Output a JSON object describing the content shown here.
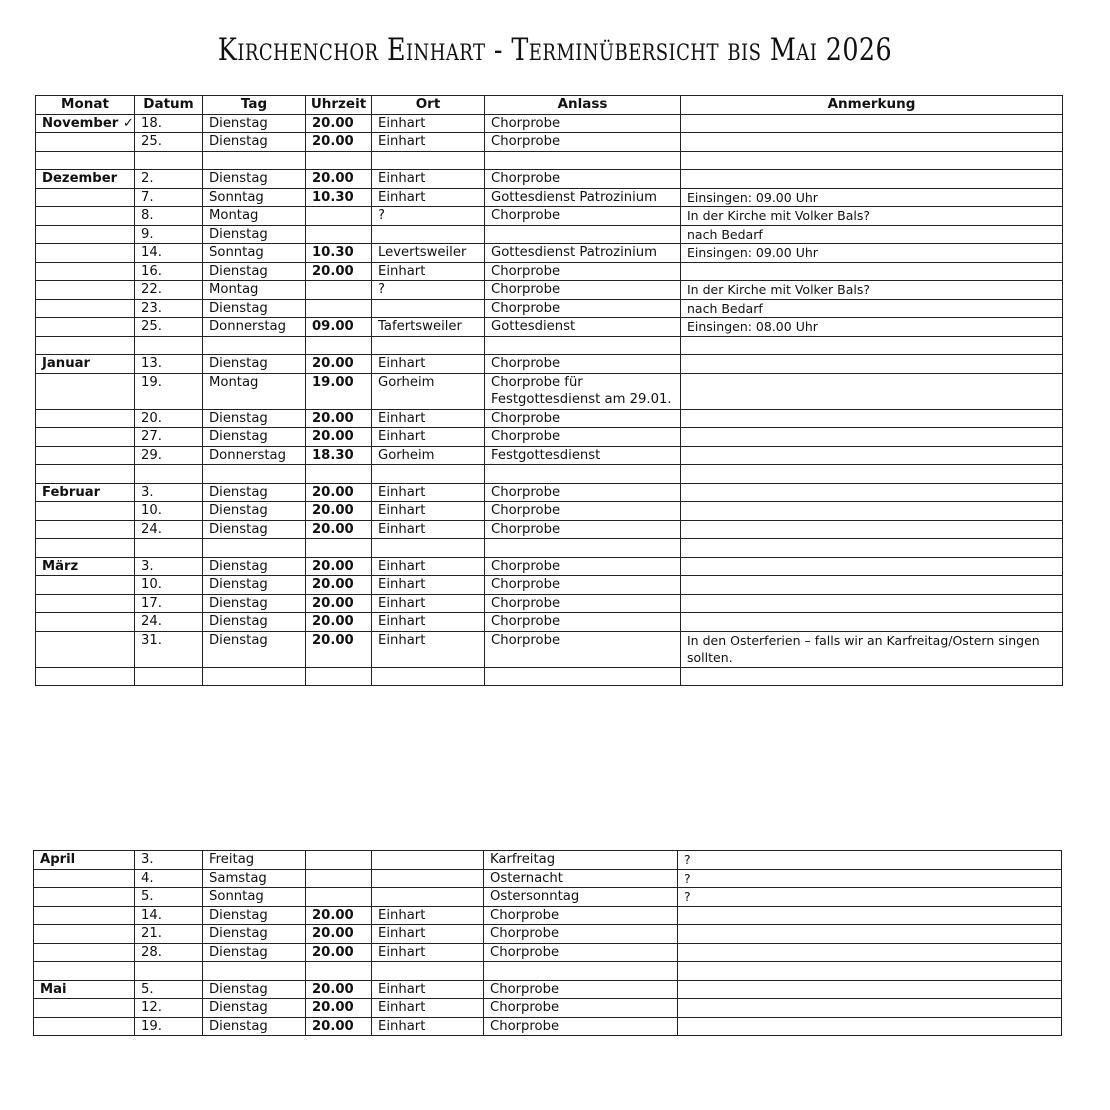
{
  "title": "Kirchenchor Einhart - Terminübersicht bis Mai 2026",
  "headers": [
    "Monat",
    "Datum",
    "Tag",
    "Uhrzeit",
    "Ort",
    "Anlass",
    "Anmerkung"
  ],
  "table1": [
    [
      "November ✓",
      "18.",
      "Dienstag",
      "20.00",
      "Einhart",
      "Chorprobe",
      ""
    ],
    [
      "",
      "25.",
      "Dienstag",
      "20.00",
      "Einhart",
      "Chorprobe",
      ""
    ],
    [
      "",
      "",
      "",
      "",
      "",
      "",
      ""
    ],
    [
      "Dezember",
      "2.",
      "Dienstag",
      "20.00",
      "Einhart",
      "Chorprobe",
      ""
    ],
    [
      "",
      "7.",
      "Sonntag",
      "10.30",
      "Einhart",
      "Gottesdienst Patrozinium",
      "Einsingen: 09.00 Uhr"
    ],
    [
      "",
      "8.",
      "Montag",
      "",
      "?",
      "Chorprobe",
      "In der Kirche mit Volker Bals?"
    ],
    [
      "",
      "9.",
      "Dienstag",
      "",
      "",
      "",
      "nach Bedarf"
    ],
    [
      "",
      "14.",
      "Sonntag",
      "10.30",
      "Levertsweiler",
      "Gottesdienst Patrozinium",
      "Einsingen: 09.00 Uhr"
    ],
    [
      "",
      "16.",
      "Dienstag",
      "20.00",
      "Einhart",
      "Chorprobe",
      ""
    ],
    [
      "",
      "22.",
      "Montag",
      "",
      "?",
      "Chorprobe",
      "In der Kirche mit Volker Bals?"
    ],
    [
      "",
      "23.",
      "Dienstag",
      "",
      "",
      "Chorprobe",
      "nach Bedarf"
    ],
    [
      "",
      "25.",
      "Donnerstag",
      "09.00",
      "Tafertsweiler",
      "Gottesdienst",
      "Einsingen: 08.00 Uhr"
    ],
    [
      "",
      "",
      "",
      "",
      "",
      "",
      ""
    ],
    [
      "Januar",
      "13.",
      "Dienstag",
      "20.00",
      "Einhart",
      "Chorprobe",
      ""
    ],
    [
      "",
      "19.",
      "Montag",
      "19.00",
      "Gorheim",
      "Chorprobe für Festgottesdienst am 29.01.",
      ""
    ],
    [
      "",
      "20.",
      "Dienstag",
      "20.00",
      "Einhart",
      "Chorprobe",
      ""
    ],
    [
      "",
      "27.",
      "Dienstag",
      "20.00",
      "Einhart",
      "Chorprobe",
      ""
    ],
    [
      "",
      "29.",
      "Donnerstag",
      "18.30",
      "Gorheim",
      "Festgottesdienst",
      ""
    ],
    [
      "",
      "",
      "",
      "",
      "",
      "",
      ""
    ],
    [
      "Februar",
      "3.",
      "Dienstag",
      "20.00",
      "Einhart",
      "Chorprobe",
      ""
    ],
    [
      "",
      "10.",
      "Dienstag",
      "20.00",
      "Einhart",
      "Chorprobe",
      ""
    ],
    [
      "",
      "24.",
      "Dienstag",
      "20.00",
      "Einhart",
      "Chorprobe",
      ""
    ],
    [
      "",
      "",
      "",
      "",
      "",
      "",
      ""
    ],
    [
      "März",
      "3.",
      "Dienstag",
      "20.00",
      "Einhart",
      "Chorprobe",
      ""
    ],
    [
      "",
      "10.",
      "Dienstag",
      "20.00",
      "Einhart",
      "Chorprobe",
      ""
    ],
    [
      "",
      "17.",
      "Dienstag",
      "20.00",
      "Einhart",
      "Chorprobe",
      ""
    ],
    [
      "",
      "24.",
      "Dienstag",
      "20.00",
      "Einhart",
      "Chorprobe",
      ""
    ],
    [
      "",
      "31.",
      "Dienstag",
      "20.00",
      "Einhart",
      "Chorprobe",
      "In den Osterferien – falls wir an Karfreitag/Ostern singen sollten."
    ],
    [
      "",
      "",
      "",
      "",
      "",
      "",
      ""
    ]
  ],
  "table2": [
    [
      "April",
      "3.",
      "Freitag",
      "",
      "",
      "Karfreitag",
      "?"
    ],
    [
      "",
      "4.",
      "Samstag",
      "",
      "",
      "Osternacht",
      "?"
    ],
    [
      "",
      "5.",
      "Sonntag",
      "",
      "",
      "Ostersonntag",
      "?"
    ],
    [
      "",
      "14.",
      "Dienstag",
      "20.00",
      "Einhart",
      "Chorprobe",
      ""
    ],
    [
      "",
      "21.",
      "Dienstag",
      "20.00",
      "Einhart",
      "Chorprobe",
      ""
    ],
    [
      "",
      "28.",
      "Dienstag",
      "20.00",
      "Einhart",
      "Chorprobe",
      ""
    ],
    [
      "",
      "",
      "",
      "",
      "",
      "",
      ""
    ],
    [
      "Mai",
      "5.",
      "Dienstag",
      "20.00",
      "Einhart",
      "Chorprobe",
      ""
    ],
    [
      "",
      "12.",
      "Dienstag",
      "20.00",
      "Einhart",
      "Chorprobe",
      ""
    ],
    [
      "",
      "19.",
      "Dienstag",
      "20.00",
      "Einhart",
      "Chorprobe",
      ""
    ]
  ]
}
